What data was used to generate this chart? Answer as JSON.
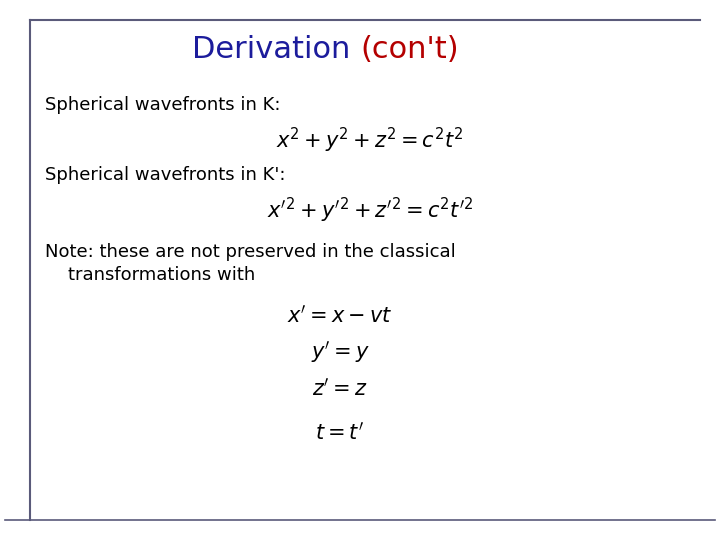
{
  "title_part1": "Derivation ",
  "title_part2": "(con't)",
  "title_color1": "#1C1C9C",
  "title_color2": "#B40000",
  "title_fontsize": 22,
  "bg_color": "#FFFFFF",
  "border_color": "#5A5A7A",
  "text_color": "#000000",
  "text_fontsize": 13,
  "eq_fontsize": 15,
  "label1": "Spherical wavefronts in K:",
  "eq1": "$x^{2}+y^{2}+z^{2}=c^{2}t^{2}$",
  "label2": "Spherical wavefronts in K':",
  "eq2": "$x'^{2}+y'^{2}+z'^{2}=c^{2}t'^{2}$",
  "note_line1": "Note: these are not preserved in the classical",
  "note_line2": "    transformations with",
  "eq3": "$x'=x-vt$",
  "eq4": "$y'=y$",
  "eq5": "$z'=z$",
  "eq6": "$t=t'$"
}
